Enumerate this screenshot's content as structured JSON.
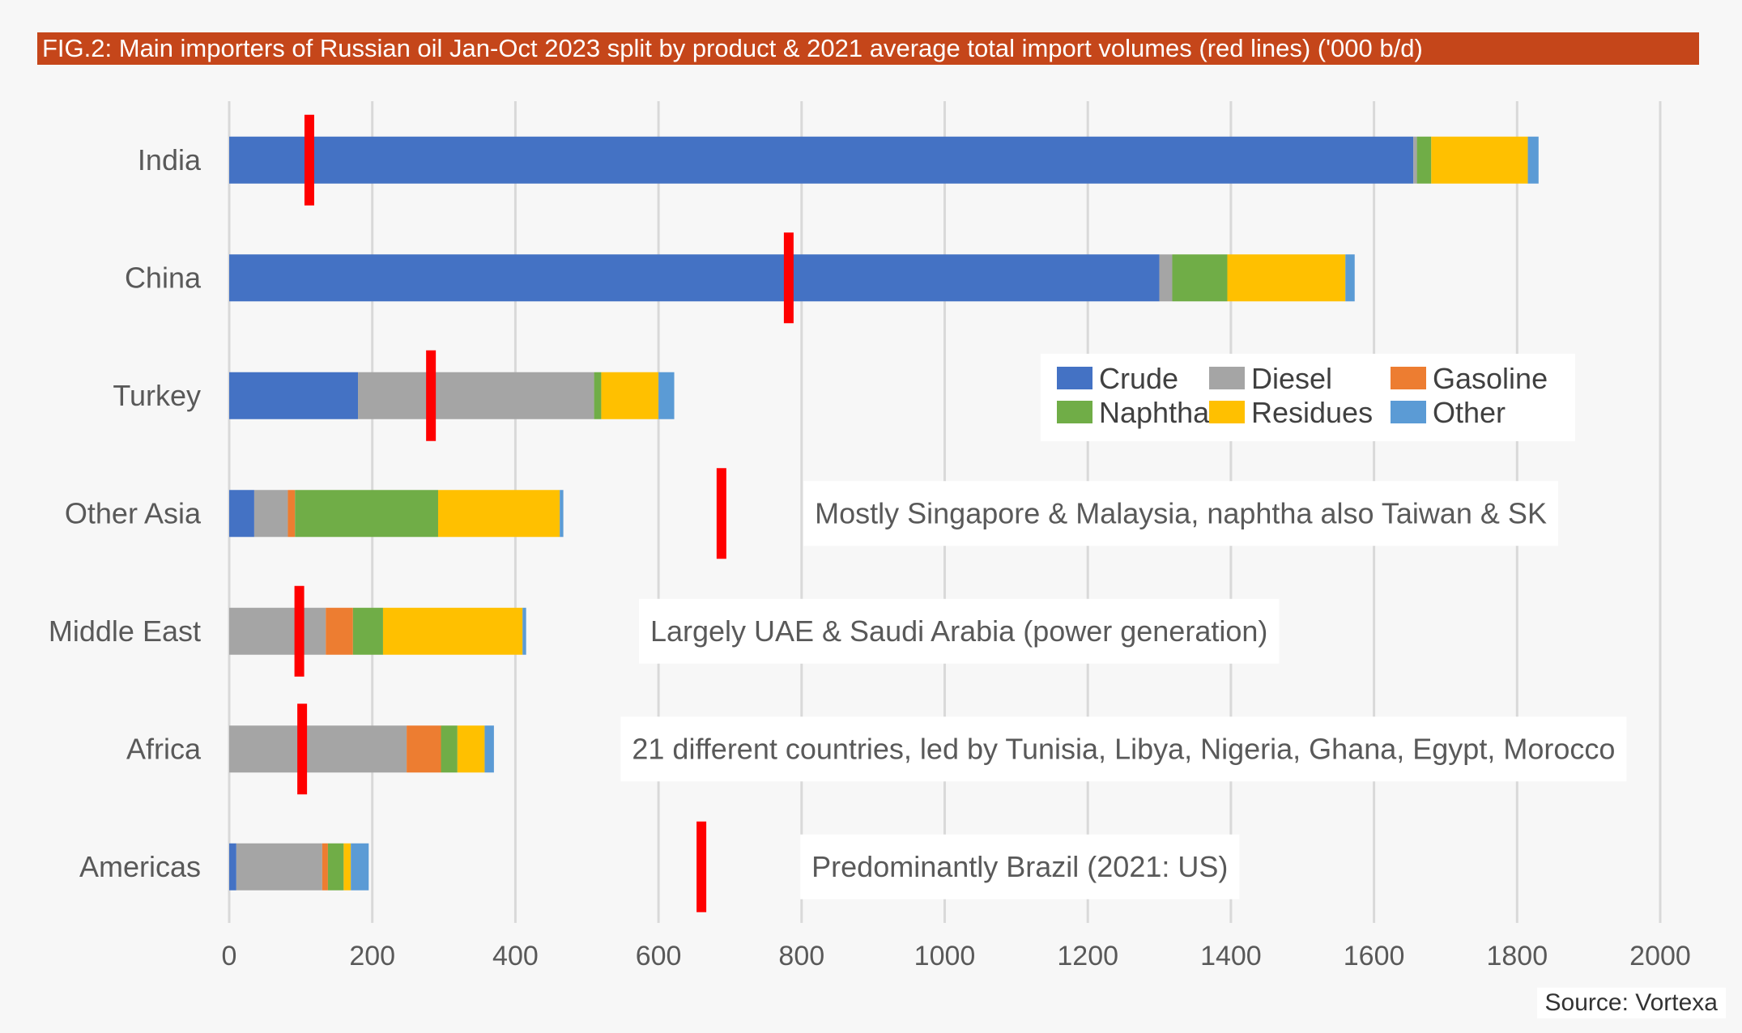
{
  "title": "FIG.2: Main importers of Russian oil Jan-Oct 2023 split by product & 2021 average total import volumes (red lines) ('000 b/d)",
  "source": "Source: Vortexa",
  "chart_data": {
    "type": "bar",
    "orientation": "horizontal",
    "stacked": true,
    "title": "FIG.2: Main importers of Russian oil Jan-Oct 2023 split by product & 2021 average total import volumes (red lines) ('000 b/d)",
    "xlabel": "",
    "ylabel": "",
    "xlim": [
      0,
      2000
    ],
    "xticks": [
      0,
      200,
      400,
      600,
      800,
      1000,
      1200,
      1400,
      1600,
      1800,
      2000
    ],
    "grid": "vertical",
    "legend_position": "center-right",
    "categories": [
      "India",
      "China",
      "Turkey",
      "Other Asia",
      "Middle East",
      "Africa",
      "Americas"
    ],
    "series": [
      {
        "name": "Crude",
        "color": "#4472c4",
        "values": [
          1655,
          1300,
          180,
          35,
          0,
          0,
          10
        ]
      },
      {
        "name": "Diesel",
        "color": "#a5a5a5",
        "values": [
          5,
          18,
          330,
          47,
          135,
          248,
          120
        ]
      },
      {
        "name": "Gasoline",
        "color": "#ed7d31",
        "values": [
          0,
          0,
          0,
          10,
          38,
          48,
          8
        ]
      },
      {
        "name": "Naphtha",
        "color": "#70ad47",
        "values": [
          20,
          77,
          10,
          200,
          42,
          23,
          22
        ]
      },
      {
        "name": "Residues",
        "color": "#ffc000",
        "values": [
          135,
          165,
          80,
          170,
          195,
          38,
          10
        ]
      },
      {
        "name": "Other",
        "color": "#5b9bd5",
        "values": [
          15,
          13,
          22,
          5,
          5,
          13,
          25
        ]
      }
    ],
    "avg_2021_total": {
      "name": "2021 average total import volumes",
      "color": "#ff0000",
      "values": [
        112,
        782,
        282,
        688,
        98,
        102,
        660
      ]
    },
    "annotations": [
      {
        "category": "Other Asia",
        "x_value": 1330,
        "text": "Mostly Singapore & Malaysia, naphtha also Taiwan & SK"
      },
      {
        "category": "Middle East",
        "x_value": 1020,
        "text": "Largely UAE & Saudi Arabia (power generation)"
      },
      {
        "category": "Africa",
        "x_value": 1250,
        "text": "21 different countries, led by Tunisia, Libya, Nigeria, Ghana, Egypt, Morocco"
      },
      {
        "category": "Americas",
        "x_value": 1105,
        "text": "Predominantly Brazil (2021: US)"
      }
    ]
  }
}
